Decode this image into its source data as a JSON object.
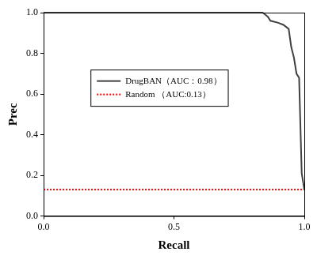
{
  "chart_data": {
    "type": "line",
    "x_label": "Recall",
    "y_label": "Prec",
    "xlim": [
      0,
      1
    ],
    "ylim": [
      0,
      1
    ],
    "xticks": [
      {
        "value": 0,
        "label": "0.0"
      },
      {
        "value": 0.5,
        "label": "0.5"
      },
      {
        "value": 1,
        "label": "1.0"
      }
    ],
    "yticks": [
      {
        "value": 0,
        "label": "0.0"
      },
      0.2,
      0.4,
      0.6,
      0.8,
      {
        "value": 1,
        "label": "1.0"
      }
    ],
    "grid": false,
    "legend": "left",
    "series": [
      {
        "name": "DrugBAN（AUC：0.98）",
        "color": "#404040",
        "line_style": "solid",
        "marker": "none",
        "x": [
          0,
          0.84,
          0.85,
          0.86,
          0.87,
          0.9,
          0.92,
          0.94,
          0.95,
          0.96,
          0.97,
          0.98,
          0.99,
          1.0
        ],
        "values": [
          1,
          1,
          0.99,
          0.98,
          0.96,
          0.95,
          0.94,
          0.92,
          0.83,
          0.78,
          0.7,
          0.68,
          0.21,
          0.13
        ]
      },
      {
        "name": "Random （AUC:0.13）",
        "color": "#ff0000",
        "line_style": "dotted",
        "marker": "none",
        "x": [
          0,
          1
        ],
        "values": [
          0.13,
          0.13
        ]
      }
    ]
  }
}
